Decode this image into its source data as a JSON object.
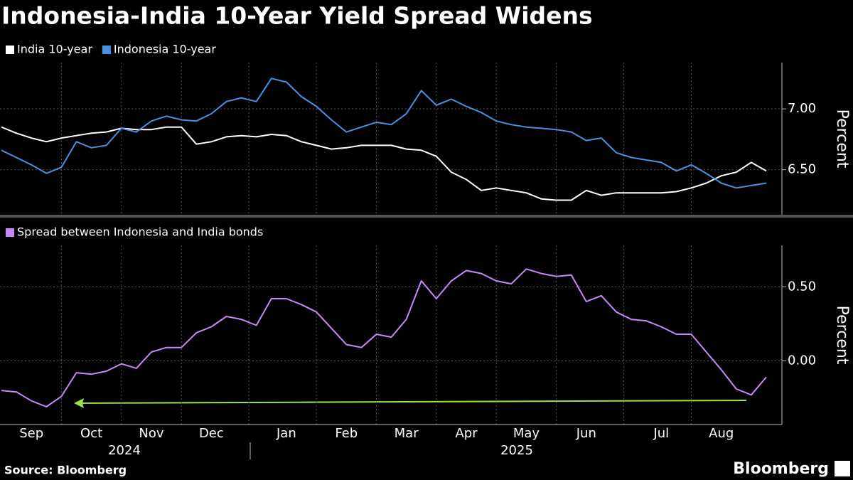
{
  "chart_data": [
    {
      "type": "line",
      "title": "Indonesia-India 10-Year Yield Spread Widens",
      "y_label": "Percent",
      "ylim": [
        6.13,
        7.38
      ],
      "yticks": [
        {
          "value": 6.5,
          "label": "6.50"
        },
        {
          "value": 7,
          "label": "7.00"
        }
      ],
      "grid": true,
      "series": [
        {
          "name": "India 10-year",
          "color": "#ffffff",
          "values": [
            6.85,
            6.8,
            6.76,
            6.73,
            6.76,
            6.78,
            6.8,
            6.81,
            6.84,
            6.83,
            6.83,
            6.85,
            6.85,
            6.71,
            6.73,
            6.77,
            6.78,
            6.77,
            6.79,
            6.78,
            6.73,
            6.7,
            6.67,
            6.68,
            6.7,
            6.7,
            6.7,
            6.67,
            6.66,
            6.61,
            6.48,
            6.42,
            6.33,
            6.35,
            6.33,
            6.31,
            6.26,
            6.25,
            6.25,
            6.33,
            6.29,
            6.31,
            6.31,
            6.31,
            6.31,
            6.32,
            6.35,
            6.39,
            6.45,
            6.48,
            6.56,
            6.49
          ]
        },
        {
          "name": "Indonesia 10-year",
          "color": "#4a90e2",
          "values": [
            6.66,
            6.6,
            6.54,
            6.47,
            6.52,
            6.73,
            6.68,
            6.7,
            6.84,
            6.81,
            6.9,
            6.94,
            6.91,
            6.9,
            6.96,
            7.06,
            7.09,
            7.06,
            7.25,
            7.22,
            7.1,
            7.02,
            6.91,
            6.81,
            6.85,
            6.89,
            6.87,
            6.96,
            7.15,
            7.03,
            7.08,
            7.02,
            6.97,
            6.9,
            6.87,
            6.85,
            6.84,
            6.83,
            6.81,
            6.74,
            6.76,
            6.64,
            6.6,
            6.58,
            6.56,
            6.49,
            6.54,
            6.47,
            6.39,
            6.35,
            6.37,
            6.39
          ]
        }
      ]
    },
    {
      "type": "line",
      "y_label": "Percent",
      "ylim": [
        -0.43,
        0.78
      ],
      "yticks": [
        {
          "value": 0,
          "label": "0.00"
        },
        {
          "value": 0.5,
          "label": "0.50"
        }
      ],
      "grid": true,
      "categories": [
        null,
        null,
        "Sep",
        null,
        null,
        null,
        "Oct",
        null,
        null,
        null,
        "Nov",
        null,
        null,
        null,
        "Dec",
        null,
        null,
        null,
        null,
        "Jan",
        null,
        null,
        null,
        "Feb",
        null,
        null,
        null,
        "Mar",
        null,
        null,
        null,
        "Apr",
        null,
        null,
        null,
        "May",
        null,
        null,
        null,
        "Jun",
        null,
        null,
        null,
        null,
        "Jul",
        null,
        null,
        null,
        "Aug",
        null,
        null,
        null
      ],
      "years": [
        "2024",
        "2025"
      ],
      "series": [
        {
          "name": "Spread between Indonesia and India bonds",
          "color": "#c58af9",
          "values": [
            -0.2,
            -0.21,
            -0.27,
            -0.31,
            -0.24,
            -0.08,
            -0.09,
            -0.07,
            -0.02,
            -0.05,
            0.06,
            0.09,
            0.09,
            0.19,
            0.23,
            0.3,
            0.28,
            0.24,
            0.42,
            0.42,
            0.38,
            0.33,
            0.22,
            0.11,
            0.09,
            0.18,
            0.16,
            0.28,
            0.54,
            0.42,
            0.54,
            0.61,
            0.59,
            0.54,
            0.52,
            0.62,
            0.59,
            0.57,
            0.58,
            0.4,
            0.44,
            0.33,
            0.28,
            0.27,
            0.23,
            0.18,
            0.18,
            0.06,
            -0.06,
            -0.19,
            -0.23,
            -0.11
          ]
        }
      ]
    }
  ],
  "source": "Source: Bloomberg",
  "brand": "Bloomberg"
}
